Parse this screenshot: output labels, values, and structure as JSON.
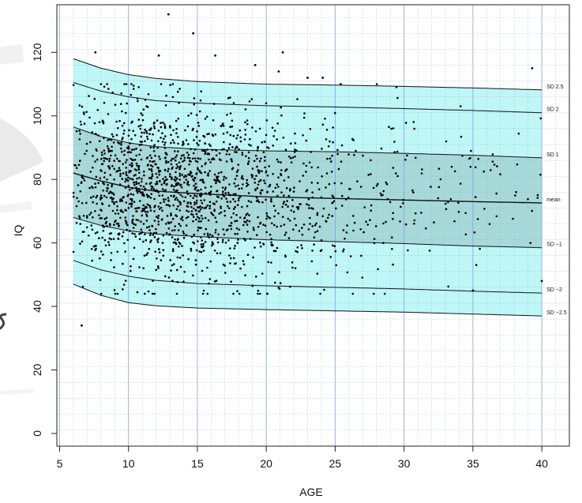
{
  "chart_data": {
    "type": "scatter",
    "title": "",
    "xlabel": "AGE",
    "ylabel": "IQ",
    "xlim": [
      4.8,
      42
    ],
    "ylim": [
      -4,
      135
    ],
    "x_ticks": [
      "5",
      "10",
      "15",
      "20",
      "25",
      "30",
      "35",
      "40"
    ],
    "y_ticks": [
      "0",
      "20",
      "40",
      "60",
      "80",
      "100",
      "120"
    ],
    "grid": true,
    "background_color": "#ffffff",
    "band_colors": {
      "outer": "#bff6f6",
      "inner": "#a7d9d9",
      "curve": "#111111",
      "points": "#000000",
      "grid": "#7f9fe0"
    },
    "centile_curves": [
      {
        "label": "SD 2.5",
        "x": [
          6,
          8,
          10,
          12,
          15,
          20,
          25,
          30,
          35,
          40
        ],
        "y": [
          118.0,
          115.0,
          113.0,
          111.8,
          110.8,
          110.0,
          109.7,
          109.3,
          108.8,
          108.2
        ]
      },
      {
        "label": "SD 2",
        "x": [
          6,
          8,
          10,
          12,
          15,
          20,
          25,
          30,
          35,
          40
        ],
        "y": [
          110.5,
          107.8,
          106.0,
          104.8,
          104.0,
          103.2,
          102.8,
          102.3,
          101.7,
          101.0
        ]
      },
      {
        "label": "SD 1",
        "x": [
          6,
          8,
          10,
          12,
          15,
          20,
          25,
          30,
          35,
          40
        ],
        "y": [
          96.5,
          93.5,
          91.5,
          90.3,
          89.5,
          89.0,
          88.7,
          88.2,
          87.6,
          86.8
        ]
      },
      {
        "label": "mean",
        "x": [
          6,
          8,
          10,
          12,
          15,
          20,
          25,
          30,
          35,
          40
        ],
        "y": [
          82.0,
          79.5,
          77.5,
          76.3,
          75.5,
          74.5,
          74.0,
          73.5,
          73.0,
          72.6
        ]
      },
      {
        "label": "SD −1",
        "x": [
          6,
          8,
          10,
          12,
          15,
          20,
          25,
          30,
          35,
          40
        ],
        "y": [
          68.0,
          65.5,
          63.8,
          62.8,
          62.0,
          61.0,
          60.4,
          59.8,
          59.0,
          58.5
        ]
      },
      {
        "label": "SD −2",
        "x": [
          6,
          8,
          10,
          12,
          15,
          20,
          25,
          30,
          35,
          40
        ],
        "y": [
          54.5,
          51.5,
          49.5,
          48.2,
          47.2,
          46.5,
          46.0,
          45.5,
          44.8,
          44.2
        ]
      },
      {
        "label": "SD −2.5",
        "x": [
          6,
          8,
          10,
          12,
          15,
          20,
          25,
          30,
          35,
          40
        ],
        "y": [
          47.0,
          43.5,
          41.2,
          40.2,
          39.5,
          39.0,
          38.6,
          38.2,
          37.6,
          37.0
        ]
      }
    ],
    "notable_points": [
      {
        "x": 6.6,
        "y": 34
      },
      {
        "x": 7.6,
        "y": 120
      },
      {
        "x": 12.2,
        "y": 119
      },
      {
        "x": 12.9,
        "y": 132
      },
      {
        "x": 14.7,
        "y": 126
      },
      {
        "x": 16.3,
        "y": 119
      },
      {
        "x": 21.2,
        "y": 120
      },
      {
        "x": 19.2,
        "y": 116
      },
      {
        "x": 20.9,
        "y": 114
      },
      {
        "x": 39.3,
        "y": 115
      },
      {
        "x": 35.0,
        "y": 45
      },
      {
        "x": 40.0,
        "y": 48
      },
      {
        "x": 23.0,
        "y": 112
      },
      {
        "x": 24.1,
        "y": 112
      },
      {
        "x": 25.4,
        "y": 110
      }
    ],
    "scatter_density": [
      {
        "x_range": [
          6,
          8
        ],
        "y_mean": 80,
        "y_sd": 14,
        "count": 110
      },
      {
        "x_range": [
          8,
          10
        ],
        "y_mean": 78,
        "y_sd": 13.5,
        "count": 220
      },
      {
        "x_range": [
          10,
          12
        ],
        "y_mean": 77,
        "y_sd": 13.5,
        "count": 260
      },
      {
        "x_range": [
          12,
          14
        ],
        "y_mean": 76,
        "y_sd": 13.5,
        "count": 250
      },
      {
        "x_range": [
          14,
          16
        ],
        "y_mean": 75.5,
        "y_sd": 13.5,
        "count": 230
      },
      {
        "x_range": [
          16,
          18
        ],
        "y_mean": 75,
        "y_sd": 13.5,
        "count": 180
      },
      {
        "x_range": [
          18,
          20
        ],
        "y_mean": 75,
        "y_sd": 13.5,
        "count": 140
      },
      {
        "x_range": [
          20,
          22
        ],
        "y_mean": 74.5,
        "y_sd": 13.5,
        "count": 110
      },
      {
        "x_range": [
          22,
          25
        ],
        "y_mean": 74,
        "y_sd": 13.5,
        "count": 110
      },
      {
        "x_range": [
          25,
          30
        ],
        "y_mean": 74,
        "y_sd": 13.5,
        "count": 90
      },
      {
        "x_range": [
          30,
          35
        ],
        "y_mean": 73.5,
        "y_sd": 13.5,
        "count": 45
      },
      {
        "x_range": [
          35,
          40
        ],
        "y_mean": 73,
        "y_sd": 13.5,
        "count": 30
      }
    ]
  }
}
